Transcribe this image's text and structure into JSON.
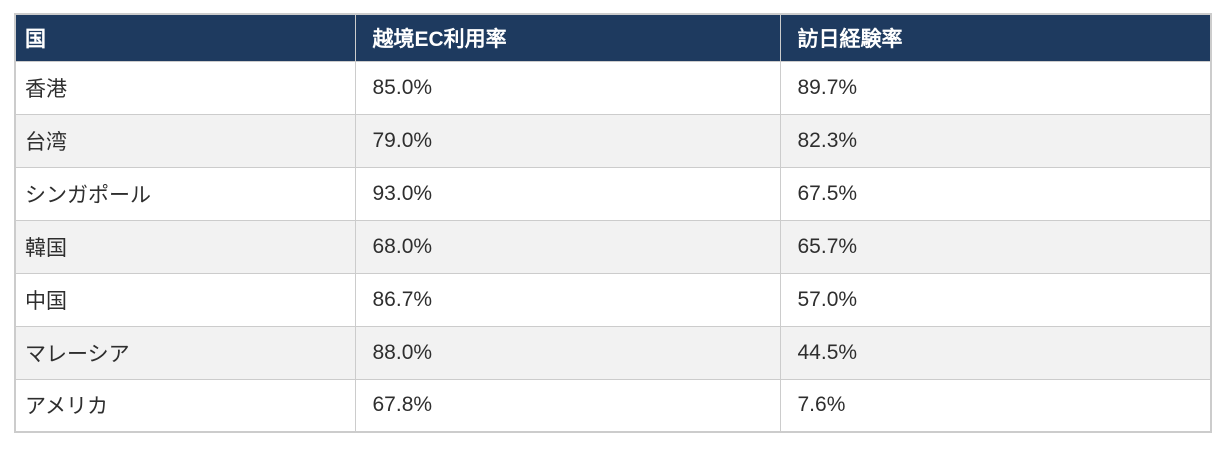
{
  "table": {
    "columns": [
      {
        "key": "country",
        "label": "国"
      },
      {
        "key": "ec_rate",
        "label": "越境EC利用率"
      },
      {
        "key": "visit_rate",
        "label": "訪日経験率"
      }
    ],
    "rows": [
      {
        "country": "香港",
        "ec_rate": "85.0%",
        "visit_rate": "89.7%"
      },
      {
        "country": "台湾",
        "ec_rate": "79.0%",
        "visit_rate": "82.3%"
      },
      {
        "country": "シンガポール",
        "ec_rate": "93.0%",
        "visit_rate": "67.5%"
      },
      {
        "country": "韓国",
        "ec_rate": "68.0%",
        "visit_rate": "65.7%"
      },
      {
        "country": "中国",
        "ec_rate": "86.7%",
        "visit_rate": "57.0%"
      },
      {
        "country": "マレーシア",
        "ec_rate": "88.0%",
        "visit_rate": "44.5%"
      },
      {
        "country": "アメリカ",
        "ec_rate": "67.8%",
        "visit_rate": "7.6%"
      }
    ]
  },
  "colors": {
    "header_bg": "#1e3a5f",
    "header_text": "#ffffff",
    "row_bg": "#ffffff",
    "row_alt_bg": "#f2f2f2",
    "border": "#cccccc",
    "body_text": "#2e2e2e"
  },
  "chart_data": {
    "type": "table",
    "title": "",
    "columns": [
      "国",
      "越境EC利用率",
      "訪日経験率"
    ],
    "categories": [
      "香港",
      "台湾",
      "シンガポール",
      "韓国",
      "中国",
      "マレーシア",
      "アメリカ"
    ],
    "series": [
      {
        "name": "越境EC利用率",
        "values": [
          85.0,
          79.0,
          93.0,
          68.0,
          86.7,
          88.0,
          67.8
        ]
      },
      {
        "name": "訪日経験率",
        "values": [
          89.7,
          82.3,
          67.5,
          65.7,
          57.0,
          44.5,
          7.6
        ]
      }
    ],
    "value_unit": "%"
  }
}
